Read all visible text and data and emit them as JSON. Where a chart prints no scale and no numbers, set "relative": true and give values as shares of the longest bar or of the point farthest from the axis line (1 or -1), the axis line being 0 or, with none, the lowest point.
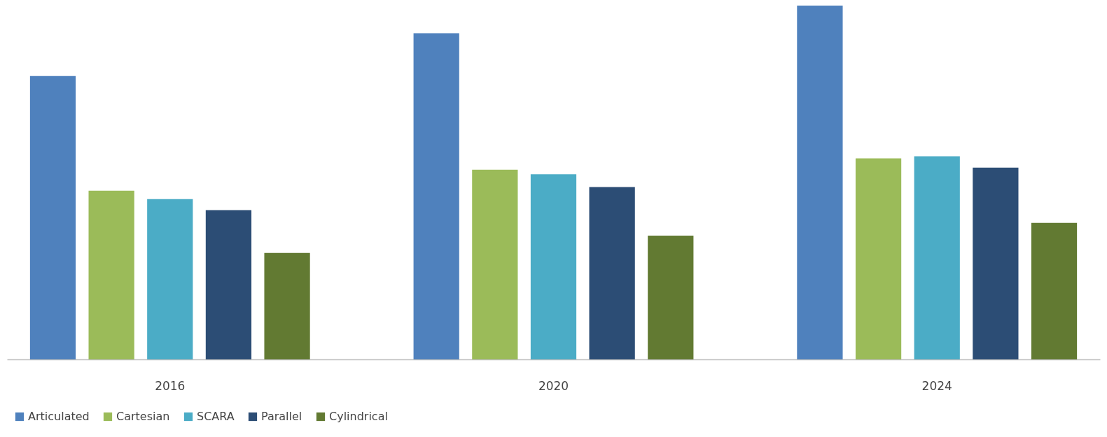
{
  "chart_data": {
    "type": "bar",
    "relative": true,
    "categories": [
      "2016",
      "2020",
      "2024"
    ],
    "series": [
      {
        "name": "Articulated",
        "color": "#4f81bd",
        "values": [
          0.801,
          0.922,
          1
        ]
      },
      {
        "name": "Cartesian",
        "color": "#9bbb59",
        "values": [
          0.477,
          0.536,
          0.568
        ]
      },
      {
        "name": "SCARA",
        "color": "#4bacc6",
        "values": [
          0.453,
          0.523,
          0.574
        ]
      },
      {
        "name": "Parallel",
        "color": "#2c4d75",
        "values": [
          0.422,
          0.487,
          0.542
        ]
      },
      {
        "name": "Cylindrical",
        "color": "#627a32",
        "values": [
          0.301,
          0.35,
          0.386
        ]
      }
    ],
    "legend": "bottom",
    "grid": false
  }
}
